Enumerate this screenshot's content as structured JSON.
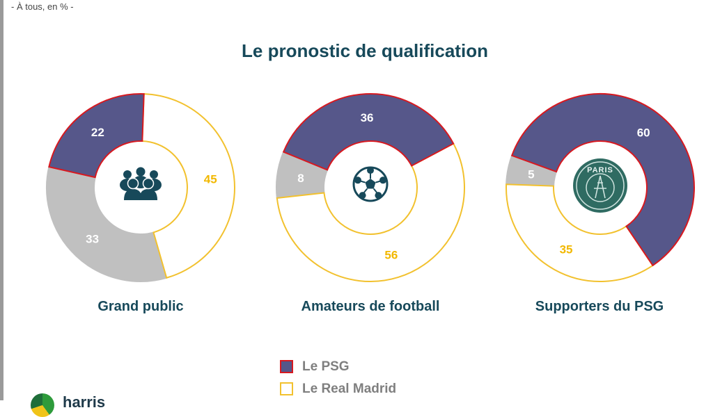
{
  "header": {
    "subtitle": "- À tous, en % -",
    "title": "Le pronostic de qualification"
  },
  "colors": {
    "psg": "#56578a",
    "psg_border": "#d71920",
    "real": "#ffffff",
    "real_border": "#f2c12e",
    "other": "#c0c0c0",
    "label_white": "#ffffff",
    "label_gold": "#f2b800",
    "dark_teal": "#17495a"
  },
  "chart_data": [
    {
      "type": "pie",
      "donut": true,
      "title": "Grand public",
      "center_icon": "people-group-icon",
      "slices": [
        {
          "label": "Le PSG",
          "value": 22
        },
        {
          "label": "Le Real Madrid",
          "value": 45
        },
        {
          "label": "",
          "value": 33
        }
      ]
    },
    {
      "type": "pie",
      "donut": true,
      "title": "Amateurs de football",
      "center_icon": "soccer-ball-icon",
      "slices": [
        {
          "label": "Le PSG",
          "value": 36
        },
        {
          "label": "Le Real Madrid",
          "value": 56
        },
        {
          "label": "",
          "value": 8
        }
      ]
    },
    {
      "type": "pie",
      "donut": true,
      "title": "Supporters du PSG",
      "center_icon": "psg-crest-icon",
      "center_text": "PARIS",
      "slices": [
        {
          "label": "Le PSG",
          "value": 60
        },
        {
          "label": "Le Real Madrid",
          "value": 35
        },
        {
          "label": "",
          "value": 5
        }
      ]
    }
  ],
  "legend": {
    "position": "bottom-center",
    "items": [
      {
        "label": "Le PSG",
        "series": "psg"
      },
      {
        "label": "Le Real Madrid",
        "series": "real"
      }
    ]
  },
  "logo": {
    "text": "harris",
    "icon": "harris-logo-icon"
  }
}
